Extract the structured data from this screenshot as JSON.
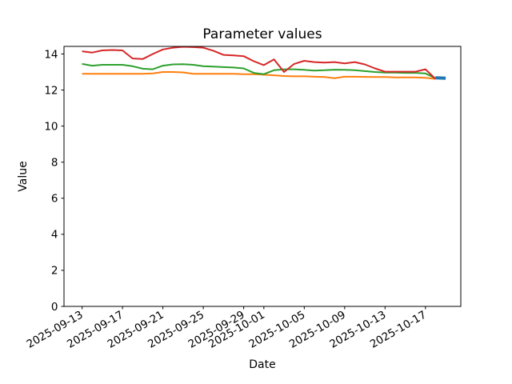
{
  "chart_data": {
    "type": "line",
    "title": "Parameter values",
    "xlabel": "Date",
    "ylabel": "Value",
    "grid": false,
    "legend": "none",
    "background": "#ffffff",
    "axis_color": "#000000",
    "ylim": [
      0,
      14.42
    ],
    "yticks": [
      0,
      2,
      4,
      6,
      8,
      10,
      12,
      14
    ],
    "xmin": "2025-09-11T05:00:00Z",
    "xmax": "2025-10-20T12:00:00Z",
    "x_tick_labels": [
      "2025-09-13",
      "2025-09-17",
      "2025-09-21",
      "2025-09-25",
      "2025-09-29",
      "2025-10-01",
      "2025-10-05",
      "2025-10-09",
      "2025-10-13",
      "2025-10-17"
    ],
    "series": [
      {
        "name": "orange",
        "color": "#ff7f0e",
        "linewidth": 2,
        "start_date": "2025-09-13",
        "values": [
          12.9,
          12.9,
          12.9,
          12.9,
          12.9,
          12.9,
          12.9,
          12.92,
          13.0,
          13.0,
          12.98,
          12.9,
          12.9,
          12.9,
          12.9,
          12.9,
          12.88,
          12.88,
          12.85,
          12.82,
          12.78,
          12.76,
          12.76,
          12.74,
          12.72,
          12.66,
          12.74,
          12.74,
          12.73,
          12.72,
          12.72,
          12.7,
          12.7,
          12.7,
          12.68,
          12.62
        ]
      },
      {
        "name": "green",
        "color": "#2ca02c",
        "linewidth": 2,
        "start_date": "2025-09-13",
        "values": [
          13.45,
          13.35,
          13.4,
          13.4,
          13.4,
          13.32,
          13.18,
          13.15,
          13.35,
          13.42,
          13.43,
          13.4,
          13.32,
          13.3,
          13.27,
          13.25,
          13.2,
          12.95,
          12.88,
          13.1,
          13.15,
          13.15,
          13.12,
          13.08,
          13.1,
          13.13,
          13.12,
          13.1,
          13.05,
          13.0,
          12.97,
          12.97,
          12.95,
          12.95,
          12.92,
          12.65
        ]
      },
      {
        "name": "red",
        "color": "#d62728",
        "linewidth": 2,
        "start_date": "2025-09-13",
        "values": [
          14.15,
          14.08,
          14.2,
          14.22,
          14.2,
          13.75,
          13.72,
          14.0,
          14.25,
          14.35,
          14.4,
          14.38,
          14.35,
          14.18,
          13.95,
          13.92,
          13.88,
          13.6,
          13.38,
          13.7,
          13.0,
          13.45,
          13.62,
          13.55,
          13.52,
          13.55,
          13.48,
          13.55,
          13.42,
          13.2,
          13.02,
          13.02,
          13.02,
          13.02,
          13.15,
          12.62
        ]
      },
      {
        "name": "blue",
        "color": "#1f77b4",
        "linewidth": 4,
        "start_date": "2025-10-18",
        "values": [
          12.68,
          12.66
        ]
      }
    ]
  }
}
